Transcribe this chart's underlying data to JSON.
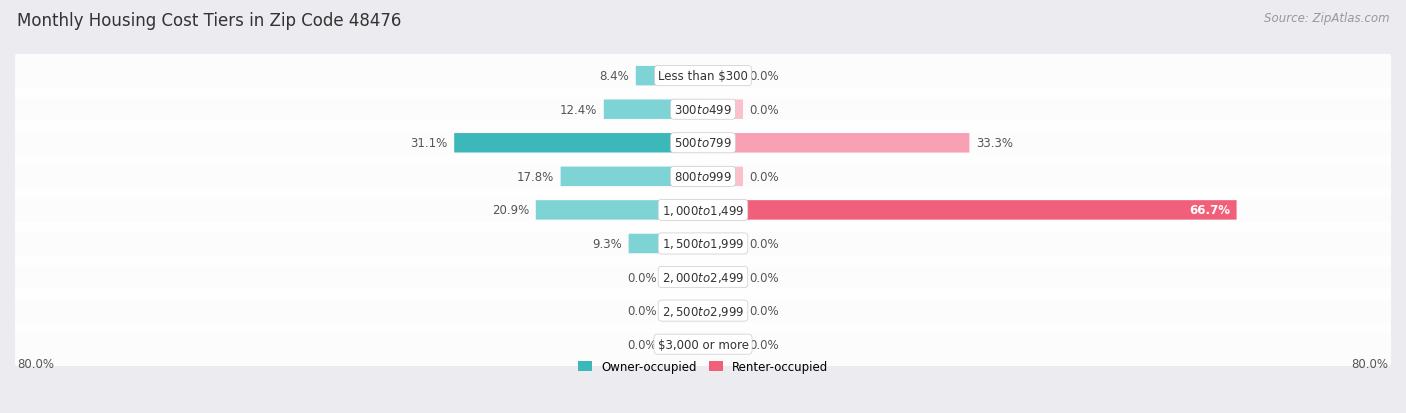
{
  "title": "Monthly Housing Cost Tiers in Zip Code 48476",
  "source": "Source: ZipAtlas.com",
  "categories": [
    "Less than $300",
    "$300 to $499",
    "$500 to $799",
    "$800 to $999",
    "$1,000 to $1,499",
    "$1,500 to $1,999",
    "$2,000 to $2,499",
    "$2,500 to $2,999",
    "$3,000 or more"
  ],
  "owner_values": [
    8.4,
    12.4,
    31.1,
    17.8,
    20.9,
    9.3,
    0.0,
    0.0,
    0.0
  ],
  "renter_values": [
    0.0,
    0.0,
    33.3,
    0.0,
    66.7,
    0.0,
    0.0,
    0.0,
    0.0
  ],
  "owner_color_dark": "#3db8ba",
  "owner_color_light": "#7ed3d5",
  "owner_color_pale": "#aee4e5",
  "renter_color_dark": "#f0607a",
  "renter_color_light": "#f8a0b4",
  "renter_color_pale": "#fac0cc",
  "bg_color": "#ebebf0",
  "row_bg_color": "#f5f5f8",
  "max_value": 80.0,
  "min_bar_display": 5.0,
  "legend_owner": "Owner-occupied",
  "legend_renter": "Renter-occupied",
  "title_fontsize": 12,
  "source_fontsize": 8.5,
  "label_fontsize": 8.5,
  "category_fontsize": 8.5,
  "axis_label_fontsize": 8.5
}
